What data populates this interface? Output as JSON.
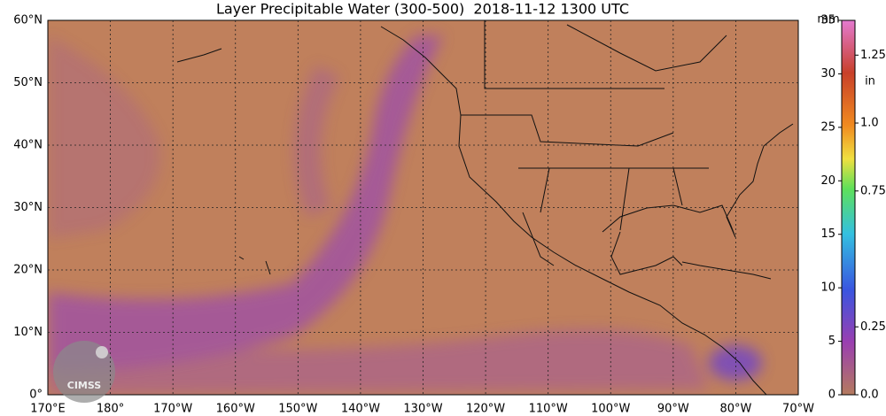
{
  "map": {
    "title": "Layer Precipitable Water (300-500)  2018-11-12 1300 UTC",
    "lat_ticks": [
      {
        "value": 60,
        "label": "60°N"
      },
      {
        "value": 50,
        "label": "50°N"
      },
      {
        "value": 40,
        "label": "40°N"
      },
      {
        "value": 30,
        "label": "30°N"
      },
      {
        "value": 20,
        "label": "20°N"
      },
      {
        "value": 10,
        "label": "10°N"
      },
      {
        "value": 0,
        "label": "0°"
      }
    ],
    "lat_range": [
      0,
      60
    ],
    "lon_range": [
      170,
      -70
    ],
    "lon_ticks": [
      {
        "value": 170,
        "label": "170°E"
      },
      {
        "value": 180,
        "label": "180°"
      },
      {
        "value": -170,
        "label": "170°W"
      },
      {
        "value": -160,
        "label": "160°W"
      },
      {
        "value": -150,
        "label": "150°W"
      },
      {
        "value": -140,
        "label": "140°W"
      },
      {
        "value": -130,
        "label": "130°W"
      },
      {
        "value": -120,
        "label": "120°W"
      },
      {
        "value": -110,
        "label": "110°W"
      },
      {
        "value": -100,
        "label": "100°W"
      },
      {
        "value": -90,
        "label": "90°W"
      },
      {
        "value": -80,
        "label": "80°W"
      },
      {
        "value": -70,
        "label": "70°W"
      }
    ],
    "colorbar": {
      "range": [
        0,
        35
      ],
      "unit_mm": "mm",
      "unit_in": "in",
      "mm_ticks": [
        0,
        5,
        10,
        15,
        20,
        25,
        30,
        35
      ],
      "in_ticks": [
        {
          "value": 0,
          "label": "0.0"
        },
        0.25,
        0.75,
        {
          "value": 1,
          "label": "1.0"
        },
        1.25
      ]
    },
    "logo": "CIMSS"
  }
}
